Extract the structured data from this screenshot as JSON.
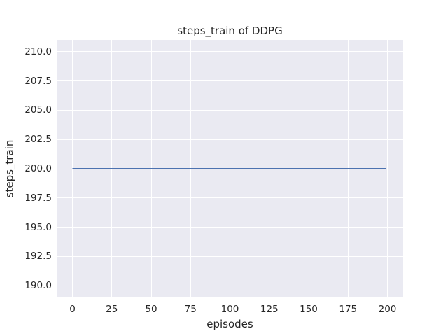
{
  "chart_data": {
    "type": "line",
    "title": "steps_train of DDPG",
    "xlabel": "episodes",
    "ylabel": "steps_train",
    "xlim": [
      -10,
      210
    ],
    "ylim": [
      189,
      211
    ],
    "xticks": [
      0,
      25,
      50,
      75,
      100,
      125,
      150,
      175,
      200
    ],
    "xtick_labels": [
      "0",
      "25",
      "50",
      "75",
      "100",
      "125",
      "150",
      "175",
      "200"
    ],
    "yticks": [
      190,
      192.5,
      195,
      197.5,
      200,
      202.5,
      205,
      207.5,
      210
    ],
    "ytick_labels": [
      "190.0",
      "192.5",
      "195.0",
      "197.5",
      "200.0",
      "202.5",
      "205.0",
      "207.5",
      "210.0"
    ],
    "grid": true,
    "legend": "none",
    "colors": {
      "axes_background": "#eaeaf2",
      "grid": "#ffffff",
      "text": "#262626"
    },
    "series": [
      {
        "name": "steps_train",
        "color": "#4c72b0",
        "line_width": 2,
        "points": [
          [
            0,
            200
          ],
          [
            199,
            200
          ]
        ]
      }
    ]
  }
}
